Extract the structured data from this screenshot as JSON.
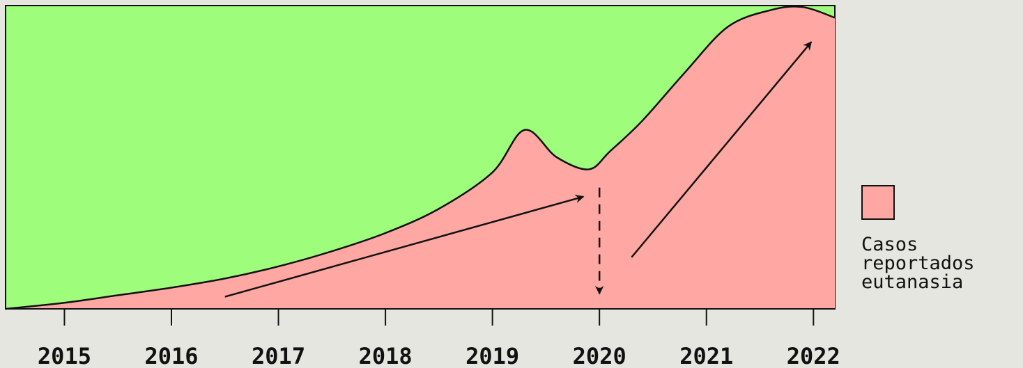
{
  "chart_data": {
    "type": "area",
    "x_ticks": [
      "2015",
      "2016",
      "2017",
      "2018",
      "2019",
      "2020",
      "2021",
      "2022"
    ],
    "xlim": [
      2014.45,
      2022.2
    ],
    "ylim": [
      0,
      1
    ],
    "series": [
      {
        "name": "Casos reportados eutanasia",
        "x": [
          2014.45,
          2015.0,
          2015.5,
          2016.0,
          2016.5,
          2017.0,
          2017.5,
          2018.0,
          2018.5,
          2019.0,
          2019.3,
          2019.6,
          2019.9,
          2020.1,
          2020.4,
          2020.8,
          2021.2,
          2021.6,
          2021.9,
          2022.2
        ],
        "values": [
          0.0,
          0.02,
          0.045,
          0.07,
          0.1,
          0.14,
          0.19,
          0.25,
          0.33,
          0.45,
          0.59,
          0.5,
          0.46,
          0.52,
          0.62,
          0.78,
          0.93,
          0.985,
          0.995,
          0.96
        ],
        "color": "#ffa8a3"
      }
    ],
    "background_color": "#9ffd7c",
    "annotations": {
      "arrow_1": {
        "from": [
          2016.5,
          0.04
        ],
        "to": [
          2019.85,
          0.37
        ],
        "style": "solid"
      },
      "arrow_2": {
        "from": [
          2020.0,
          0.4
        ],
        "to": [
          2020.0,
          0.05
        ],
        "style": "dashed"
      },
      "arrow_3": {
        "from": [
          2020.3,
          0.17
        ],
        "to": [
          2021.98,
          0.88
        ],
        "style": "solid"
      }
    },
    "legend": {
      "position": "right",
      "label": "Casos\nreportados\neutanasia"
    },
    "grid": false
  }
}
